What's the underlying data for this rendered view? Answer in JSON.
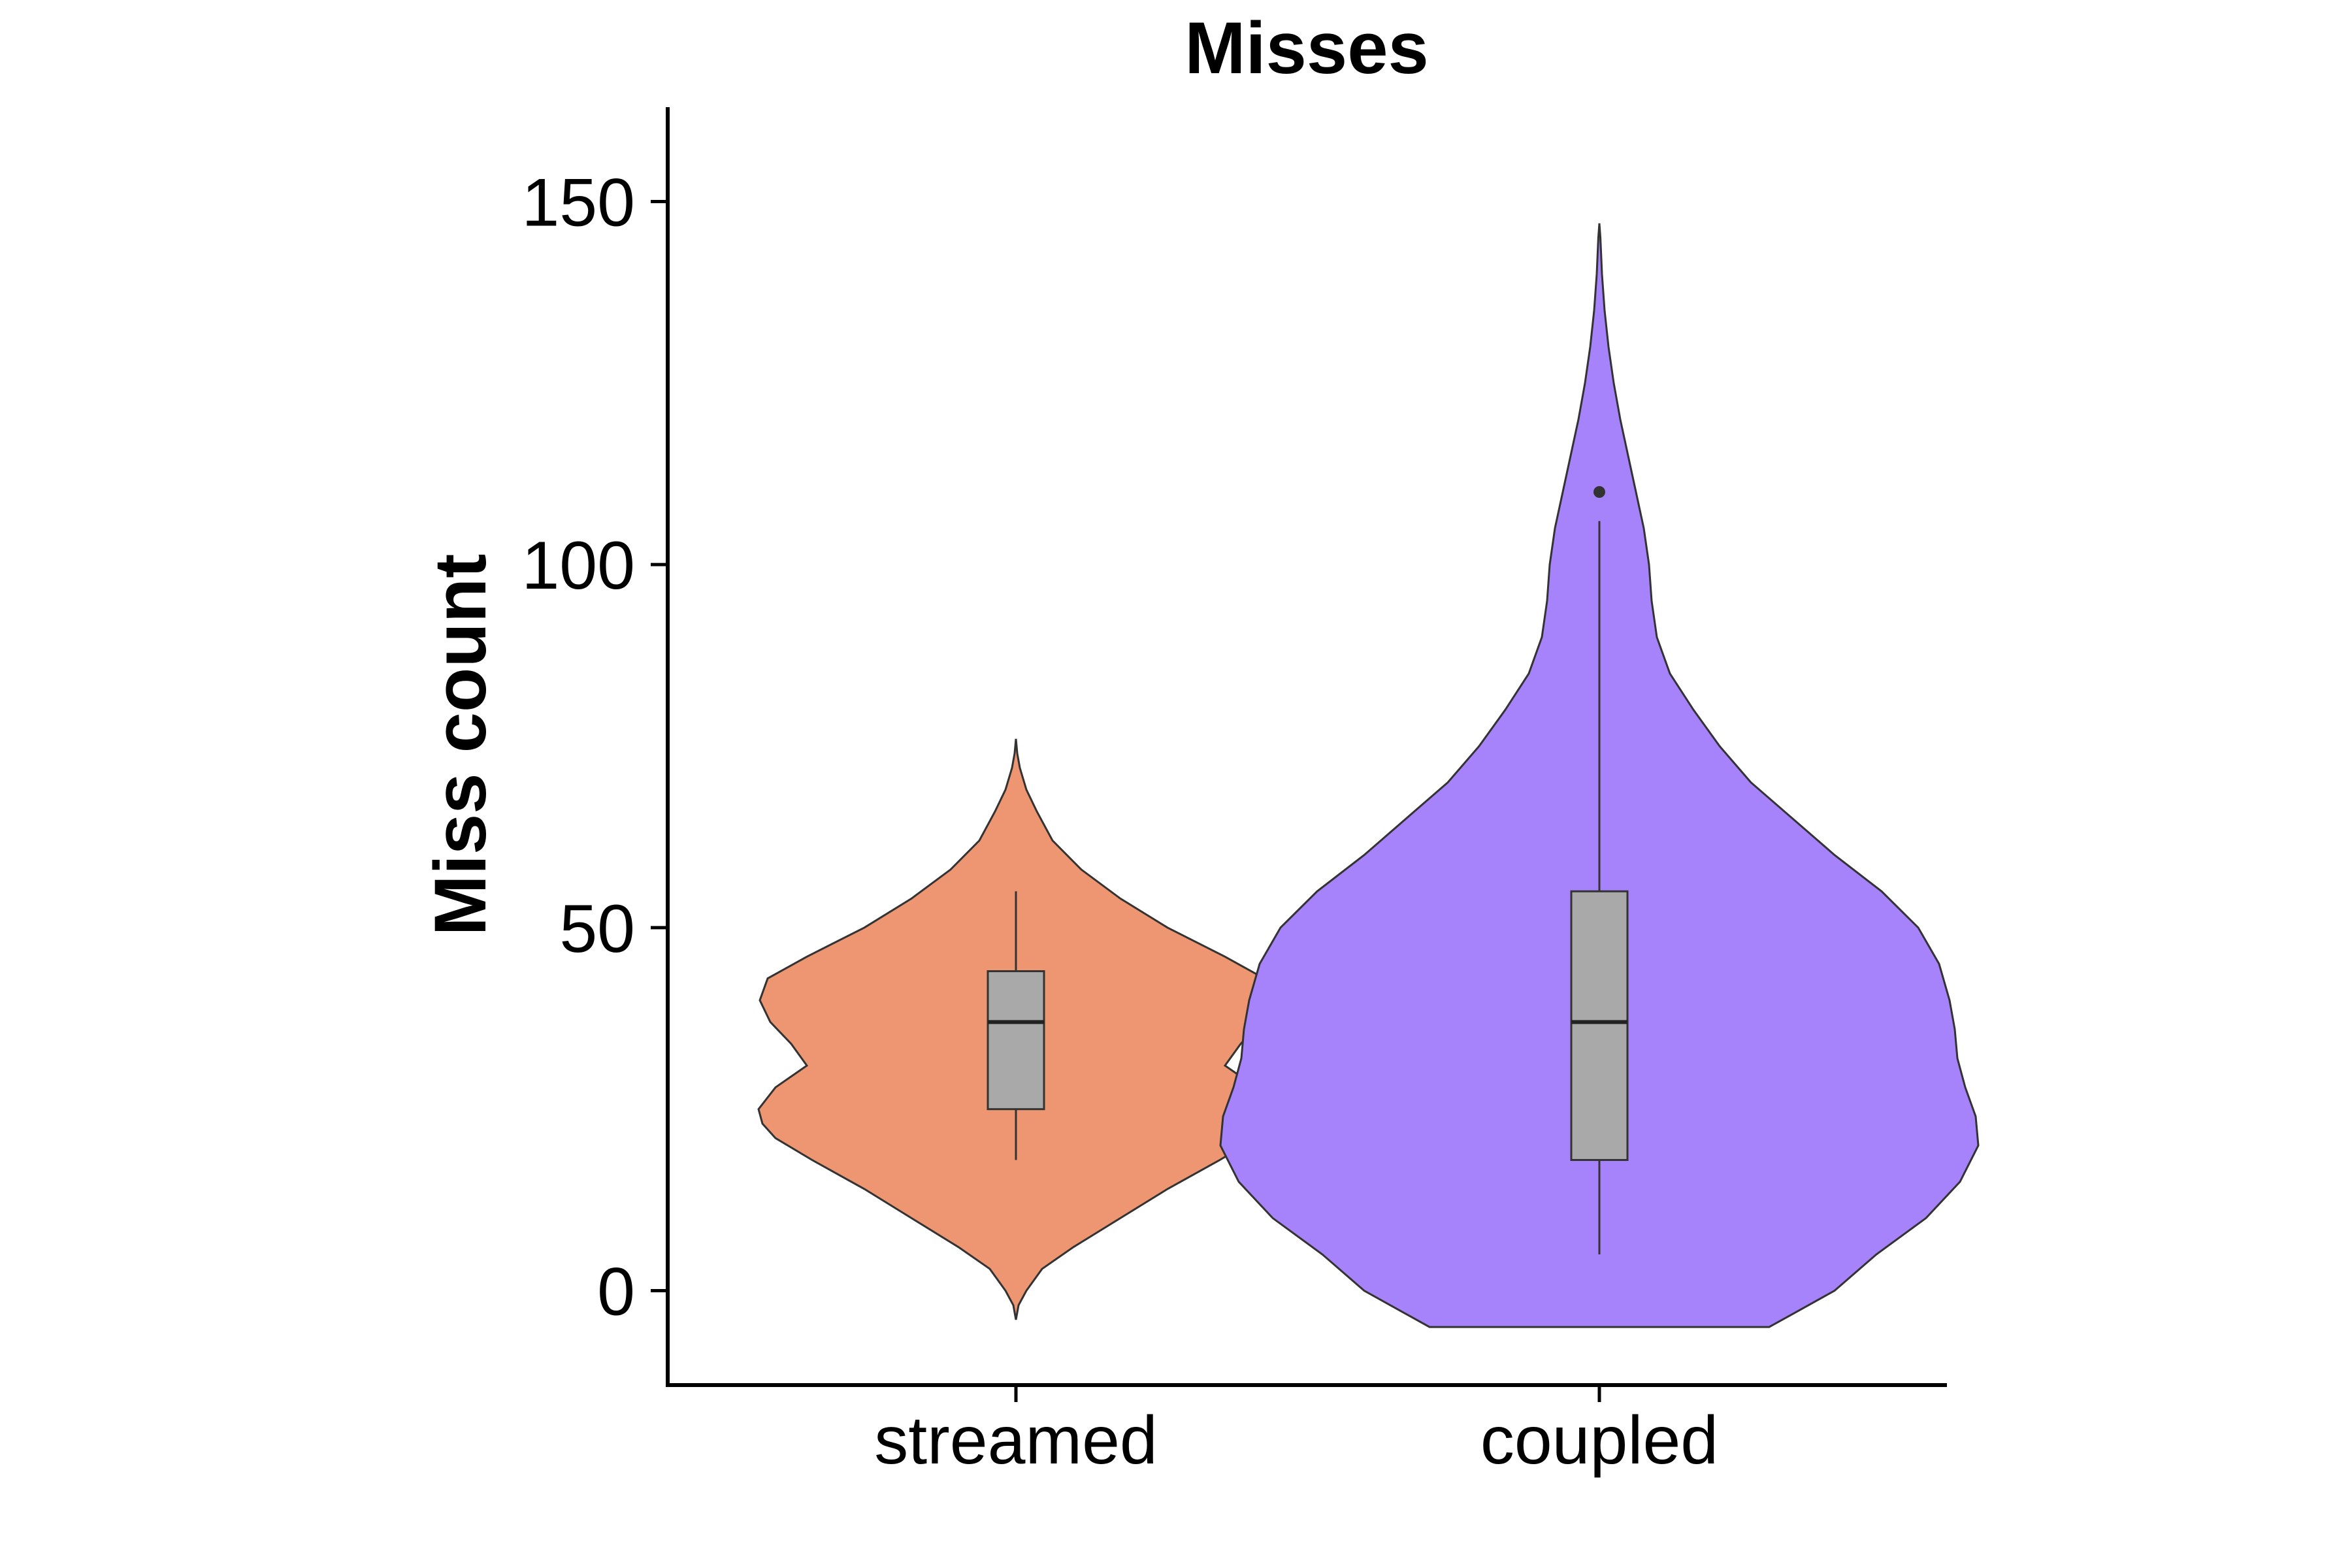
{
  "chart_data": {
    "type": "violin",
    "title": "Misses",
    "xlabel": "",
    "ylabel": "Miss count",
    "ylim": [
      -13,
      163
    ],
    "yticks": [
      0,
      50,
      100,
      150
    ],
    "grid": false,
    "legend": "none",
    "categories": [
      "streamed",
      "coupled"
    ],
    "series": [
      {
        "category": "streamed",
        "color": "#EE9672",
        "box": {
          "whisker_low": 18,
          "q1": 25,
          "median": 37,
          "q3": 44,
          "whisker_high": 55
        },
        "outliers": [],
        "violin_profile": [
          [
            -4,
            0.0
          ],
          [
            -2,
            0.01
          ],
          [
            0,
            0.04
          ],
          [
            3,
            0.1
          ],
          [
            6,
            0.22
          ],
          [
            10,
            0.4
          ],
          [
            14,
            0.58
          ],
          [
            18,
            0.78
          ],
          [
            21,
            0.92
          ],
          [
            23,
            0.97
          ],
          [
            25,
            0.985
          ],
          [
            28,
            0.92
          ],
          [
            31,
            0.8
          ],
          [
            34,
            0.86
          ],
          [
            37,
            0.94
          ],
          [
            40,
            0.98
          ],
          [
            43,
            0.95
          ],
          [
            46,
            0.8
          ],
          [
            50,
            0.58
          ],
          [
            54,
            0.4
          ],
          [
            58,
            0.25
          ],
          [
            62,
            0.14
          ],
          [
            66,
            0.08
          ],
          [
            69,
            0.04
          ],
          [
            72,
            0.015
          ],
          [
            74,
            0.005
          ],
          [
            76,
            0.0
          ]
        ]
      },
      {
        "category": "coupled",
        "color": "#A683FB",
        "box": {
          "whisker_low": 5,
          "q1": 18,
          "median": 37,
          "q3": 55,
          "whisker_high": 106
        },
        "outliers": [
          110
        ],
        "violin_profile": [
          [
            -5,
            0.65
          ],
          [
            -3,
            0.75
          ],
          [
            0,
            0.9
          ],
          [
            5,
            1.06
          ],
          [
            10,
            1.25
          ],
          [
            15,
            1.38
          ],
          [
            20,
            1.45
          ],
          [
            24,
            1.44
          ],
          [
            28,
            1.4
          ],
          [
            32,
            1.37
          ],
          [
            36,
            1.36
          ],
          [
            40,
            1.34
          ],
          [
            45,
            1.3
          ],
          [
            50,
            1.22
          ],
          [
            55,
            1.08
          ],
          [
            60,
            0.9
          ],
          [
            65,
            0.74
          ],
          [
            70,
            0.58
          ],
          [
            75,
            0.46
          ],
          [
            80,
            0.36
          ],
          [
            85,
            0.27
          ],
          [
            90,
            0.22
          ],
          [
            95,
            0.2
          ],
          [
            100,
            0.19
          ],
          [
            105,
            0.17
          ],
          [
            110,
            0.14
          ],
          [
            115,
            0.11
          ],
          [
            120,
            0.08
          ],
          [
            125,
            0.055
          ],
          [
            130,
            0.035
          ],
          [
            135,
            0.02
          ],
          [
            140,
            0.01
          ],
          [
            145,
            0.004
          ],
          [
            147,
            0.0
          ]
        ]
      }
    ]
  }
}
